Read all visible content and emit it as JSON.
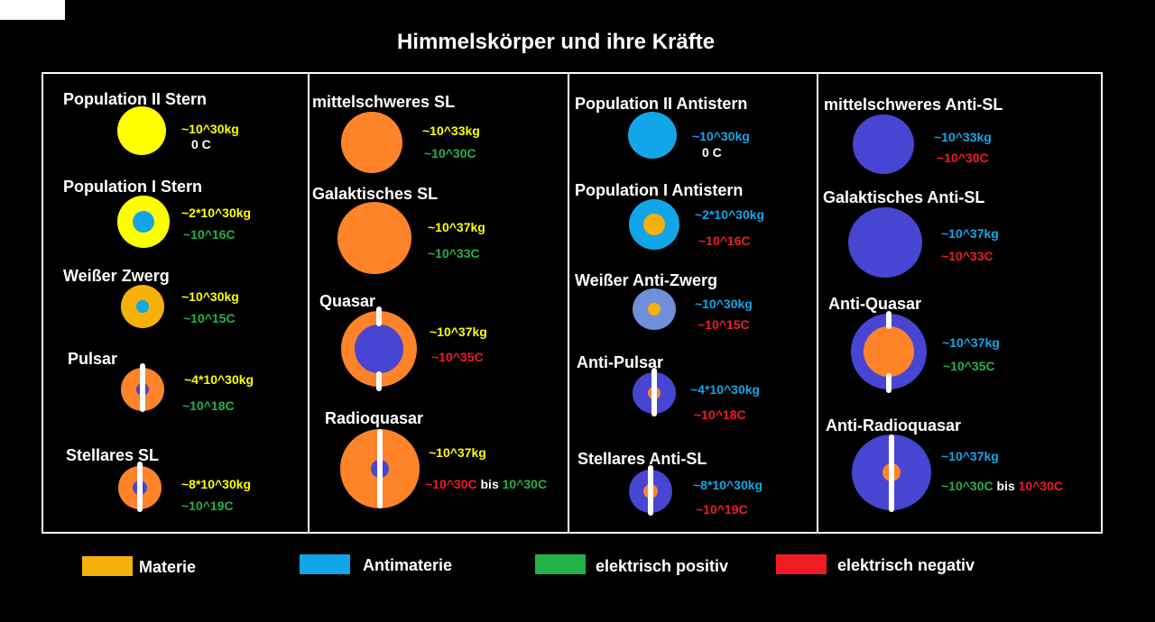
{
  "title": "Himmelskörper und ihre Kräfte",
  "colors": {
    "matter": "#f5b00a",
    "antimatter": "#12a6e8",
    "yellow_star": "#ffff00",
    "orange": "#ff8329",
    "blue_violet": "#4646d2",
    "light_blue": "#6f8fd8",
    "positive": "#21b24a",
    "negative": "#ee1c24",
    "yellow_text": "#ffff00",
    "cyan_text": "#12a6e8",
    "white": "#ffffff"
  },
  "columns": [
    {
      "objects": [
        {
          "name": "Population II Stern",
          "mass": "~10^30kg",
          "charge": "0 C"
        },
        {
          "name": "Population I Stern",
          "mass": "~2*10^30kg",
          "charge": "~10^16C"
        },
        {
          "name": "Weißer Zwerg",
          "mass": "~10^30kg",
          "charge": "~10^15C"
        },
        {
          "name": "Pulsar",
          "mass": "~4*10^30kg",
          "charge": "~10^18C"
        },
        {
          "name": "Stellares SL",
          "mass": "~8*10^30kg",
          "charge": "~10^19C"
        }
      ]
    },
    {
      "objects": [
        {
          "name": "mittelschweres SL",
          "mass": "~10^33kg",
          "charge": "~10^30C"
        },
        {
          "name": "Galaktisches SL",
          "mass": "~10^37kg",
          "charge": "~10^33C"
        },
        {
          "name": "Quasar",
          "mass": "~10^37kg",
          "charge": "~10^35C"
        },
        {
          "name": "Radioquasar",
          "mass": "~10^37kg",
          "charge_a": "~10^30C",
          "charge_bis": "bis",
          "charge_b": "10^30C"
        }
      ]
    },
    {
      "objects": [
        {
          "name": "Population  II  Antistern",
          "mass": "~10^30kg",
          "charge": "0 C"
        },
        {
          "name": "Population I  Antistern",
          "mass": "~2*10^30kg",
          "charge": "~10^16C"
        },
        {
          "name": "Weißer  Anti-Zwerg",
          "mass": "~10^30kg",
          "charge": "~10^15C"
        },
        {
          "name": "Anti-Pulsar",
          "mass": "~4*10^30kg",
          "charge": "~10^18C"
        },
        {
          "name": "Stellares  Anti-SL",
          "mass": "~8*10^30kg",
          "charge": "~10^19C"
        }
      ]
    },
    {
      "objects": [
        {
          "name": "mittelschweres  Anti-SL",
          "mass": "~10^33kg",
          "charge": "~10^30C"
        },
        {
          "name": "Galaktisches  Anti-SL",
          "mass": "~10^37kg",
          "charge": "~10^33C"
        },
        {
          "name": "Anti-Quasar",
          "mass": "~10^37kg",
          "charge": "~10^35C"
        },
        {
          "name": "Anti-Radioquasar",
          "mass": "~10^37kg",
          "charge_a": "~10^30C",
          "charge_bis": "bis",
          "charge_b": "10^30C"
        }
      ]
    }
  ],
  "legend": [
    {
      "label": "Materie",
      "color": "#f5b00a"
    },
    {
      "label": "Antimaterie",
      "color": "#12a6e8"
    },
    {
      "label": "elektrisch positiv",
      "color": "#21b24a"
    },
    {
      "label": "elektrisch negativ",
      "color": "#ee1c24"
    }
  ]
}
